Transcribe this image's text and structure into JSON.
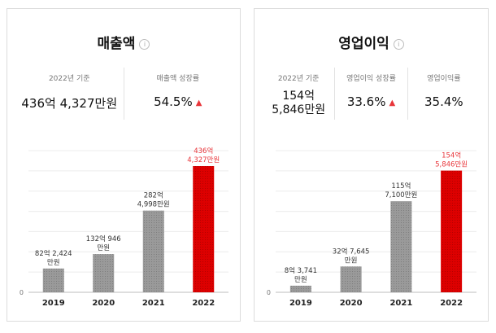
{
  "cards": [
    {
      "title": "매출액",
      "stats": [
        {
          "label": "2022년 기준",
          "value": "436억 4,327만원"
        },
        {
          "label": "매출액 성장률",
          "value": "54.5%",
          "trend": "up"
        }
      ]
    },
    {
      "title": "영업이익",
      "stats": [
        {
          "label": "2022년 기준",
          "value_lines": [
            "154억",
            "5,846만원"
          ]
        },
        {
          "label": "영업이익 성장률",
          "value": "33.6%",
          "trend": "up"
        },
        {
          "label": "영업이익률",
          "value": "35.4%"
        }
      ]
    }
  ],
  "chart_data": [
    {
      "type": "bar",
      "categories": [
        "2019",
        "2020",
        "2021",
        "2022"
      ],
      "values": [
        82.2424,
        132.0946,
        282.4998,
        436.4327
      ],
      "data_labels": [
        [
          "82억 2,424",
          "만원"
        ],
        [
          "132억 946",
          "만원"
        ],
        [
          "282억",
          "4,998만원"
        ],
        [
          "436억",
          "4,327만원"
        ]
      ],
      "highlight_index": 3,
      "ylim": [
        0,
        490
      ],
      "y_tick_labels": [
        "0"
      ],
      "grid": true,
      "colors": {
        "default": "#9a9a9a",
        "highlight": "#dd0000",
        "highlight_label": "#e8353a"
      }
    },
    {
      "type": "bar",
      "categories": [
        "2019",
        "2020",
        "2021",
        "2022"
      ],
      "values": [
        8.3741,
        32.7645,
        115.71,
        154.5846
      ],
      "data_labels": [
        [
          "8억 3,741",
          "만원"
        ],
        [
          "32억 7,645",
          "만원"
        ],
        [
          "115억",
          "7,100만원"
        ],
        [
          "154억",
          "5,846만원"
        ]
      ],
      "highlight_index": 3,
      "ylim": [
        0,
        180
      ],
      "y_tick_labels": [
        "0"
      ],
      "grid": true,
      "colors": {
        "default": "#9a9a9a",
        "highlight": "#dd0000",
        "highlight_label": "#e8353a"
      }
    }
  ]
}
